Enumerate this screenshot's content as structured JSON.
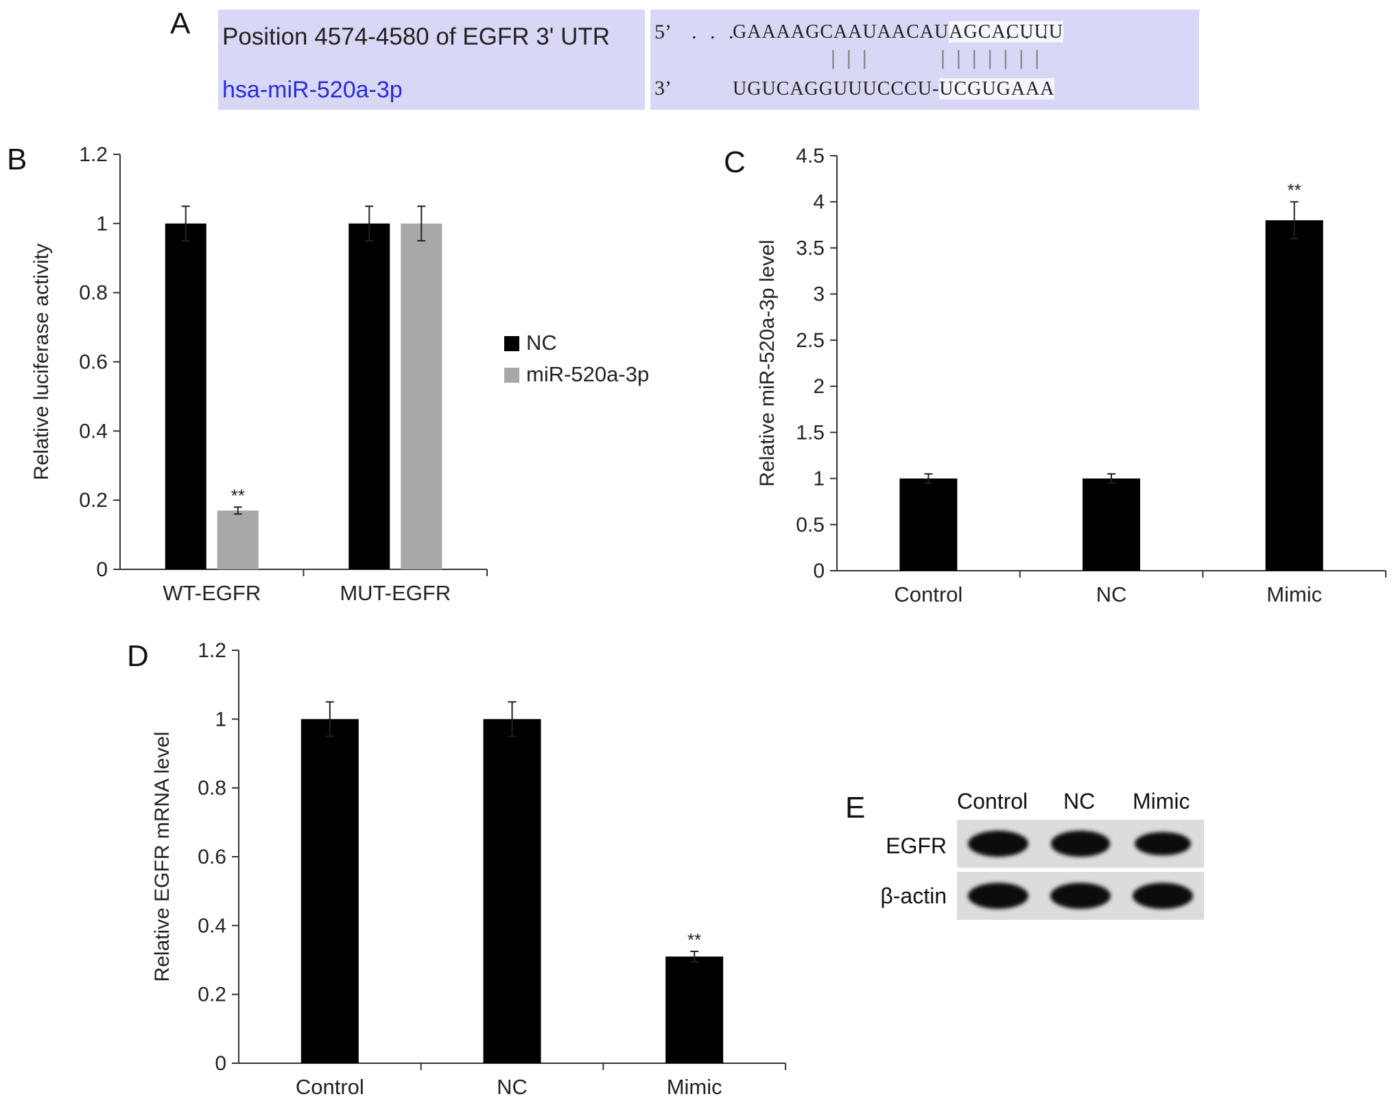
{
  "panels": {
    "A": "A",
    "B": "B",
    "C": "C",
    "D": "D",
    "E": "E"
  },
  "sequence": {
    "position_label": "Position 4574-4580 of EGFR 3' UTR",
    "mirna_label": "hsa-miR-520a-3p",
    "utr_prime": "5’",
    "utr_prefix": ". . .",
    "utr_seq_a": "GAAAAGCAAUAACAU",
    "utr_seq_b": "AGCACUUU",
    "utr_suffix": ". . .",
    "mirna_prime": "3’",
    "mirna_seq_a": "UGUCAGGUUUCCCU-",
    "mirna_seq_b": "UCGUGAAA",
    "pairing_group_1": "|||",
    "pairing_group_2": "|||||||",
    "colors": {
      "box": "#d8d8f6",
      "mirna_text": "#2b2bd8"
    }
  },
  "chart_data": [
    {
      "id": "B",
      "type": "bar",
      "categories": [
        "WT-EGFR",
        "MUT-EGFR"
      ],
      "series": [
        {
          "name": "NC",
          "values": [
            1.0,
            1.0
          ],
          "errors": [
            0.05,
            0.05
          ],
          "color": "#000000"
        },
        {
          "name": "miR-520a-3p",
          "values": [
            0.17,
            1.0
          ],
          "errors": [
            0.01,
            0.05
          ],
          "color": "#aaa7a7"
        }
      ],
      "ylabel": "Relative luciferase activity",
      "ylim": [
        0,
        1.2
      ],
      "yticks": [
        "0",
        "0.2",
        "0.4",
        "0.6",
        "0.8",
        "1",
        "1.2"
      ],
      "annotations": [
        {
          "category": "WT-EGFR",
          "series": "miR-520a-3p",
          "text": "**"
        }
      ],
      "legend": "right"
    },
    {
      "id": "C",
      "type": "bar",
      "categories": [
        "Control",
        "NC",
        "Mimic"
      ],
      "series": [
        {
          "values": [
            1.0,
            1.0,
            3.8
          ],
          "errors": [
            0.05,
            0.05,
            0.2
          ],
          "color": "#000000"
        }
      ],
      "ylabel": "Relative miR-520a-3p level",
      "ylim": [
        0,
        4.5
      ],
      "yticks": [
        "0",
        "0.5",
        "1",
        "1.5",
        "2",
        "2.5",
        "3",
        "3.5",
        "4",
        "4.5"
      ],
      "annotations": [
        {
          "category": "Mimic",
          "text": "**"
        }
      ]
    },
    {
      "id": "D",
      "type": "bar",
      "categories": [
        "Control",
        "NC",
        "Mimic"
      ],
      "series": [
        {
          "values": [
            1.0,
            1.0,
            0.31
          ],
          "errors": [
            0.05,
            0.05,
            0.015
          ],
          "color": "#000000"
        }
      ],
      "ylabel": "Relative EGFR mRNA level",
      "ylim": [
        0,
        1.2
      ],
      "yticks": [
        "0",
        "0.2",
        "0.4",
        "0.6",
        "0.8",
        "1",
        "1.2"
      ],
      "annotations": [
        {
          "category": "Mimic",
          "text": "**"
        }
      ]
    }
  ],
  "western_blot": {
    "lanes": [
      "Control",
      "NC",
      "Mimic"
    ],
    "rows": [
      "EGFR",
      "β-actin"
    ],
    "band_intensity": {
      "EGFR": [
        1.0,
        0.92,
        0.7
      ],
      "β-actin": [
        1.0,
        1.0,
        1.0
      ]
    }
  }
}
